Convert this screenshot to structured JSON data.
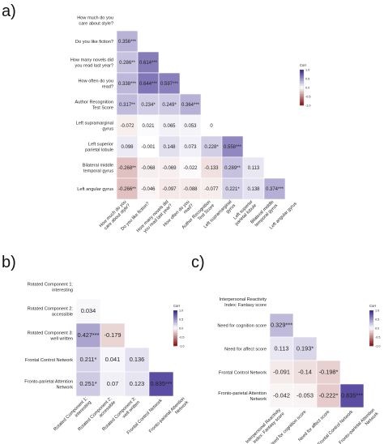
{
  "panels": [
    {
      "letter": "a)"
    },
    {
      "letter": "b)"
    },
    {
      "letter": "c)"
    }
  ],
  "chart_data": [
    {
      "type": "heatmap",
      "variant": "lower-triangle correlation matrix",
      "legend_title": "Corr",
      "legend_ticks": [
        "1.0",
        "0.5",
        "0.0",
        "-0.5",
        "-1.0"
      ],
      "scale": [
        -1,
        1
      ],
      "row_labels": [
        [
          "How much do you",
          "care about style?"
        ],
        [
          "Do you like fiction?"
        ],
        [
          "How many novels did",
          "you read last year?"
        ],
        [
          "How often do you",
          "read?"
        ],
        [
          "Author Recognition",
          "Test Score"
        ],
        [
          "Left supramarginal",
          "gyrus"
        ],
        [
          "Left superior",
          "parietal lobule"
        ],
        [
          "Bilateral middle",
          "temporal gyrus"
        ],
        [
          "Left angular gyrus"
        ]
      ],
      "col_labels": [
        [
          "How much do you",
          "care about style?"
        ],
        [
          "Do you like fiction?"
        ],
        [
          "How many novels did",
          "you read last year?"
        ],
        [
          "How often do you",
          "read?"
        ],
        [
          "Author Recognition",
          "Test Score"
        ],
        [
          "Left supramarginal",
          "gyrus"
        ],
        [
          "Left superior",
          "parietal lobule"
        ],
        [
          "Bilateral middle",
          "temporal gyrus"
        ],
        [
          "Left angular gyrus"
        ]
      ],
      "values": [
        [],
        [
          0.356
        ],
        [
          0.286,
          0.614
        ],
        [
          0.338,
          0.644,
          0.597
        ],
        [
          0.317,
          0.234,
          0.249,
          0.364
        ],
        [
          -0.072,
          0.021,
          0.065,
          0.053,
          0
        ],
        [
          0.098,
          -0.001,
          0.148,
          0.073,
          0.228,
          0.558
        ],
        [
          -0.268,
          -0.068,
          -0.069,
          -0.022,
          -0.133,
          0.289,
          0.113
        ],
        [
          -0.266,
          -0.046,
          -0.097,
          -0.088,
          -0.077,
          0.221,
          0.138,
          0.374
        ]
      ],
      "labels": [
        [],
        [
          "0.356***"
        ],
        [
          "0.286**",
          "0.614***"
        ],
        [
          "0.338***",
          "0.644***",
          "0.597***"
        ],
        [
          "0.317**",
          "0.234*",
          "0.249*",
          "0.364***"
        ],
        [
          "-0.072",
          "0.021",
          "0.065",
          "0.053",
          "0"
        ],
        [
          "0.098",
          "-0.001",
          "0.148",
          "0.073",
          "0.228*",
          "0.558***"
        ],
        [
          "-0.268**",
          "-0.068",
          "-0.069",
          "-0.022",
          "-0.133",
          "0.289**",
          "0.113"
        ],
        [
          "-0.266**",
          "-0.046",
          "-0.097",
          "-0.088",
          "-0.077",
          "0.221*",
          "0.138",
          "0.374***"
        ]
      ]
    },
    {
      "type": "heatmap",
      "variant": "lower-triangle correlation matrix",
      "legend_title": "Corr",
      "legend_ticks": [
        "1.0",
        "0.5",
        "0.0",
        "-0.5",
        "-1.0"
      ],
      "scale": [
        -1,
        1
      ],
      "row_labels": [
        [
          "Rotated Component 1:",
          "interesting"
        ],
        [
          "Rotated Component 2:",
          "accessible"
        ],
        [
          "Rotated Component 3:",
          "well written"
        ],
        [
          "Frontal Control Network"
        ],
        [
          "Fronto-parietal Attention",
          "Network"
        ]
      ],
      "col_labels": [
        [
          "Rotated Component 1:",
          "interesting"
        ],
        [
          "Rotated Component 2:",
          "accessible"
        ],
        [
          "Rotated Component 3:",
          "well written"
        ],
        [
          "Frontal Control Network"
        ],
        [
          "Fronto-parietal Attention",
          "Network"
        ]
      ],
      "values": [
        [],
        [
          0.034
        ],
        [
          0.427,
          -0.179
        ],
        [
          0.211,
          0.041,
          0.136
        ],
        [
          0.251,
          0.07,
          0.123,
          0.835
        ]
      ],
      "labels": [
        [],
        [
          "0.034"
        ],
        [
          "0.427***",
          "-0.179"
        ],
        [
          "0.211*",
          "0.041",
          "0.136"
        ],
        [
          "0.251*",
          "0.07",
          "0.123",
          "0.835***"
        ]
      ]
    },
    {
      "type": "heatmap",
      "variant": "lower-triangle correlation matrix",
      "legend_title": "Corr",
      "legend_ticks": [
        "1.0",
        "0.5",
        "0.0",
        "-0.5",
        "-1.0"
      ],
      "scale": [
        -1,
        1
      ],
      "row_labels": [
        [
          "Interpersonal Reactivity",
          "Index: Fantasy score"
        ],
        [
          "Need for cognition score"
        ],
        [
          "Need for affect score"
        ],
        [
          "Frontal Control Network"
        ],
        [
          "Fronto-parietal Attention",
          "Network"
        ]
      ],
      "col_labels": [
        [
          "Interpersonal Reactivity",
          "Index: Fantasy score"
        ],
        [
          "Need for cognition score"
        ],
        [
          "Need for affect score"
        ],
        [
          "Frontal Control Network"
        ],
        [
          "Fronto-parietal Attention",
          "Network"
        ]
      ],
      "values": [
        [],
        [
          0.329
        ],
        [
          0.113,
          0.193
        ],
        [
          -0.091,
          -0.14,
          -0.198
        ],
        [
          -0.042,
          -0.053,
          -0.222,
          0.835
        ]
      ],
      "labels": [
        [],
        [
          "0.329***"
        ],
        [
          "0.113",
          "0.193*"
        ],
        [
          "-0.091",
          "-0.14",
          "-0.198*"
        ],
        [
          "-0.042",
          "-0.053",
          "-0.222*",
          "0.835***"
        ]
      ]
    }
  ],
  "colors": {
    "positive": "#3b2a8f",
    "neutral": "#ffffff",
    "negative": "#8b1414",
    "text": "#222222"
  }
}
